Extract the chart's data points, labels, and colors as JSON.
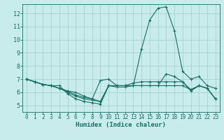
{
  "xlabel": "Humidex (Indice chaleur)",
  "ylabel": "",
  "xlim": [
    -0.5,
    23.5
  ],
  "ylim": [
    4.5,
    12.7
  ],
  "xticks": [
    0,
    1,
    2,
    3,
    4,
    5,
    6,
    7,
    8,
    9,
    10,
    11,
    12,
    13,
    14,
    15,
    16,
    17,
    18,
    19,
    20,
    21,
    22,
    23
  ],
  "yticks": [
    5,
    6,
    7,
    8,
    9,
    10,
    11,
    12
  ],
  "bg_color": "#c8ecec",
  "grid_color": "#acd4d4",
  "line_color": "#1a6e62",
  "lines": [
    [
      7.0,
      6.8,
      6.6,
      6.5,
      6.5,
      5.9,
      5.5,
      5.3,
      5.2,
      5.1,
      6.5,
      6.5,
      6.5,
      6.5,
      9.3,
      11.5,
      12.4,
      12.5,
      10.7,
      7.6,
      7.0,
      7.2,
      6.5,
      6.3
    ],
    [
      7.0,
      6.8,
      6.6,
      6.5,
      6.3,
      6.0,
      5.7,
      5.5,
      5.4,
      5.3,
      6.5,
      6.5,
      6.5,
      6.7,
      6.8,
      6.8,
      6.8,
      6.8,
      6.8,
      6.8,
      6.2,
      6.5,
      6.3,
      5.5
    ],
    [
      7.0,
      6.8,
      6.6,
      6.5,
      6.3,
      6.1,
      6.0,
      5.7,
      5.5,
      6.9,
      7.0,
      6.5,
      6.5,
      6.5,
      6.5,
      6.5,
      6.5,
      7.4,
      7.2,
      6.8,
      6.1,
      6.5,
      6.3,
      5.5
    ],
    [
      7.0,
      6.8,
      6.6,
      6.5,
      6.3,
      6.1,
      5.8,
      5.6,
      5.5,
      5.3,
      6.5,
      6.4,
      6.4,
      6.5,
      6.5,
      6.5,
      6.5,
      6.5,
      6.5,
      6.5,
      6.2,
      6.5,
      6.3,
      5.5
    ]
  ],
  "xtick_fontsize": 5.5,
  "ytick_fontsize": 6,
  "xlabel_fontsize": 6.5
}
